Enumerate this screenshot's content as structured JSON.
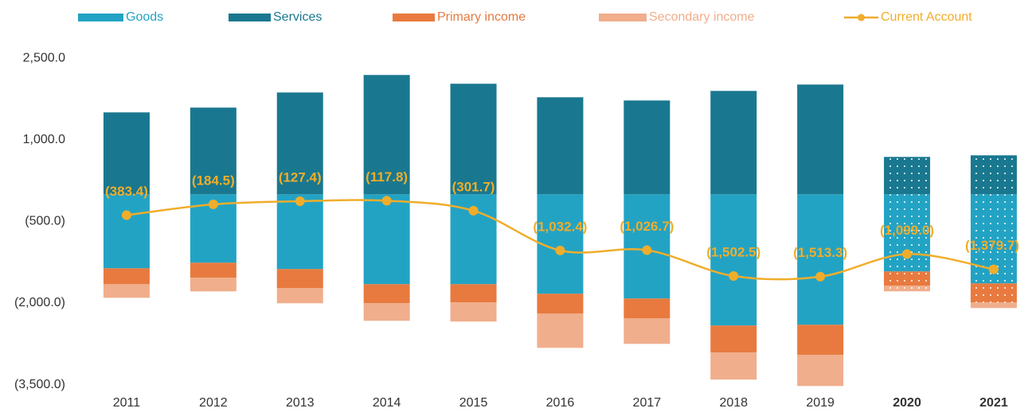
{
  "chart_data": {
    "type": "bar",
    "stacked": true,
    "categories": [
      "2011",
      "2012",
      "2013",
      "2014",
      "2015",
      "2016",
      "2017",
      "2018",
      "2019",
      "2020",
      "2021"
    ],
    "series": [
      {
        "name": "Goods",
        "color": "#23a3c4",
        "values": [
          -1361,
          -1258,
          -1375,
          -1653,
          -1653,
          -1829,
          -1917,
          -2414,
          -2399,
          -1419,
          -1639
        ]
      },
      {
        "name": "Services",
        "color": "#19788f",
        "values": [
          1507,
          1595,
          1873,
          2195,
          2034,
          1785,
          1726,
          1902,
          2019,
          688,
          717
        ]
      },
      {
        "name": "Primary income",
        "color": "#e87a3f",
        "values": [
          -293,
          -278,
          -351,
          -351,
          -336,
          -366,
          -366,
          -497,
          -556,
          -263,
          -351
        ]
      },
      {
        "name": "Secondary income",
        "color": "#f0ae8c",
        "values": [
          -249,
          -249,
          -278,
          -322,
          -351,
          -629,
          -468,
          -497,
          -571,
          -102,
          -102
        ]
      },
      {
        "name": "Current Account",
        "type": "line",
        "color": "#f0ad2b",
        "values": [
          -383.4,
          -184.5,
          -127.4,
          -117.8,
          -301.7,
          -1032.4,
          -1026.7,
          -1502.5,
          -1513.3,
          -1099.0,
          -1379.7
        ],
        "value_labels": [
          "(383.4)",
          "(184.5)",
          "(127.4)",
          "(117.8)",
          "(301.7)",
          "(1,032.4)",
          "(1,026.7)",
          "(1,502.5)",
          "(1,513.3)",
          "(1,099.0)",
          "(1,379.7)"
        ]
      }
    ],
    "ylim": [
      -3600,
      3500
    ],
    "yticks": [
      {
        "value": 2500,
        "label": "2,500.0"
      },
      {
        "value": 1000,
        "label": "1,000.0"
      },
      {
        "value": -500,
        "label": "(500.0)"
      },
      {
        "value": -2000,
        "label": "(2,000.0)"
      },
      {
        "value": -3500,
        "label": "(3,500.0)"
      }
    ],
    "legend": "top"
  }
}
